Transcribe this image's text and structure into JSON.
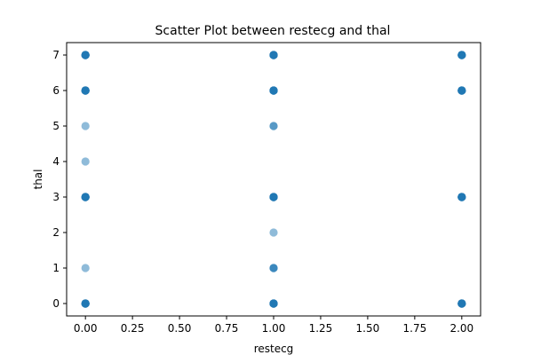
{
  "chart_data": {
    "type": "scatter",
    "title": "Scatter Plot between restecg and thal",
    "xlabel": "restecg",
    "ylabel": "thal",
    "xlim": [
      -0.1,
      2.1
    ],
    "ylim": [
      -0.35,
      7.35
    ],
    "xticks": [
      0.0,
      0.25,
      0.5,
      0.75,
      1.0,
      1.25,
      1.5,
      1.75,
      2.0
    ],
    "xtick_labels": [
      "0.00",
      "0.25",
      "0.50",
      "0.75",
      "1.00",
      "1.25",
      "1.50",
      "1.75",
      "2.00"
    ],
    "yticks": [
      0,
      1,
      2,
      3,
      4,
      5,
      6,
      7
    ],
    "ytick_labels": [
      "0",
      "1",
      "2",
      "3",
      "4",
      "5",
      "6",
      "7"
    ],
    "grid": false,
    "point_color": "#1f77b4",
    "points": [
      {
        "x": 0,
        "y": 7,
        "n": 8
      },
      {
        "x": 0,
        "y": 6,
        "n": 8
      },
      {
        "x": 0,
        "y": 5,
        "n": 1
      },
      {
        "x": 0,
        "y": 4,
        "n": 1
      },
      {
        "x": 0,
        "y": 3,
        "n": 8
      },
      {
        "x": 0,
        "y": 1,
        "n": 1
      },
      {
        "x": 0,
        "y": 0,
        "n": 8
      },
      {
        "x": 1,
        "y": 7,
        "n": 8
      },
      {
        "x": 1,
        "y": 6,
        "n": 8
      },
      {
        "x": 1,
        "y": 5,
        "n": 2
      },
      {
        "x": 1,
        "y": 3,
        "n": 8
      },
      {
        "x": 1,
        "y": 2,
        "n": 1
      },
      {
        "x": 1,
        "y": 1,
        "n": 3
      },
      {
        "x": 1,
        "y": 0,
        "n": 8
      },
      {
        "x": 2,
        "y": 7,
        "n": 8
      },
      {
        "x": 2,
        "y": 6,
        "n": 8
      },
      {
        "x": 2,
        "y": 3,
        "n": 8
      },
      {
        "x": 2,
        "y": 0,
        "n": 8
      }
    ]
  }
}
